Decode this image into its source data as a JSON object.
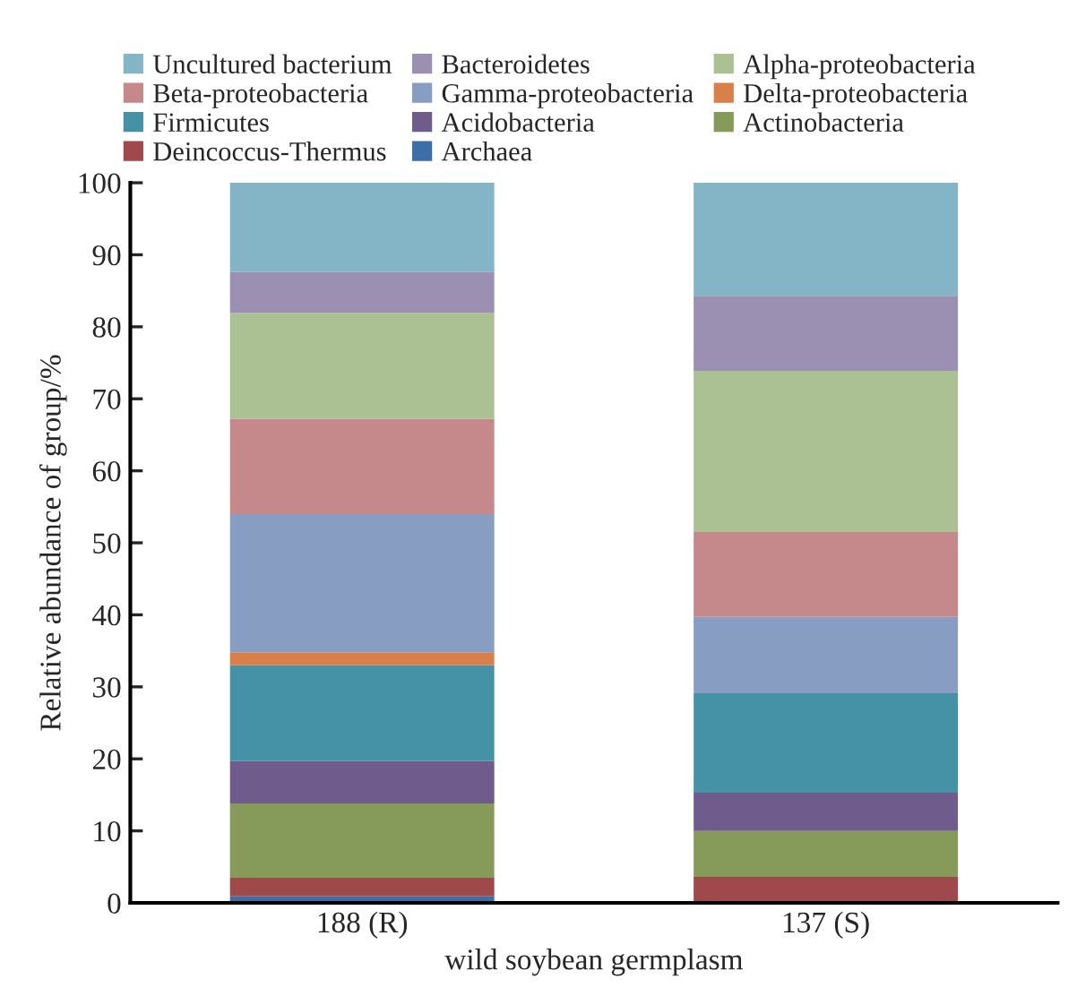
{
  "chart_data": {
    "type": "bar",
    "stacked": true,
    "xlabel": "wild soybean germplasm",
    "ylabel": "Relative abundance of group/%",
    "categories": [
      "188 (R)",
      "137 (S)"
    ],
    "ylim": [
      0,
      100
    ],
    "yticks": [
      0,
      10,
      20,
      30,
      40,
      50,
      60,
      70,
      80,
      90,
      100
    ],
    "grid": false,
    "legend": "top",
    "series": [
      {
        "name": "Archaea",
        "color": "#3e6ea8",
        "values": [
          0.9,
          0
        ]
      },
      {
        "name": "Deincoccus-Thermus",
        "color": "#a0494b",
        "values": [
          2.6,
          3.6
        ]
      },
      {
        "name": "Actinobacteria",
        "color": "#869b59",
        "values": [
          10.3,
          6.4
        ]
      },
      {
        "name": "Acidobacteria",
        "color": "#6f5b8c",
        "values": [
          5.9,
          5.3
        ]
      },
      {
        "name": "Firmicutes",
        "color": "#4592a6",
        "values": [
          13.3,
          13.8
        ]
      },
      {
        "name": "Delta-proteobacteria",
        "color": "#d9804a",
        "values": [
          1.8,
          0
        ]
      },
      {
        "name": "Gamma-proteobacteria",
        "color": "#889dc2",
        "values": [
          19.2,
          10.6
        ]
      },
      {
        "name": "Beta-proteobacteria",
        "color": "#c5888b",
        "values": [
          13.2,
          11.8
        ]
      },
      {
        "name": "Alpha-proteobacteria",
        "color": "#abc093",
        "values": [
          14.7,
          22.4
        ]
      },
      {
        "name": "Bacteroidetes",
        "color": "#9c90b2",
        "values": [
          5.7,
          10.4
        ]
      },
      {
        "name": "Uncultured bacterium",
        "color": "#84b5c6",
        "values": [
          12.4,
          15.7
        ]
      }
    ]
  }
}
